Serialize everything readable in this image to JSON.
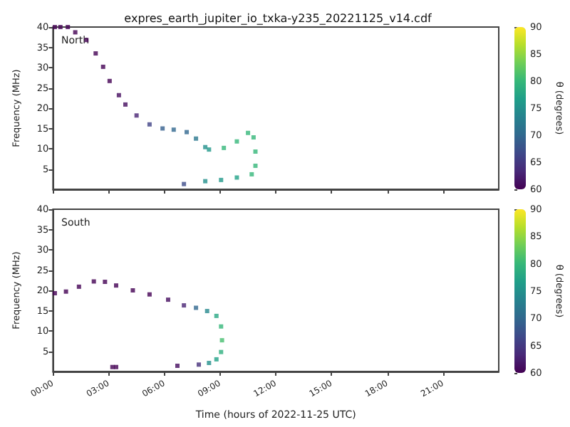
{
  "chart_data": [
    {
      "type": "scatter",
      "title": "expres_earth_jupiter_io_txka-y235_20221125_v14.cdf",
      "ylabel": "Frequency (MHz)",
      "clabel": "θ (degrees)",
      "annotations": [
        "North"
      ],
      "marker": "square",
      "tick_labels": "y",
      "x": [
        0.1,
        0.4,
        0.8,
        1.2,
        1.8,
        2.3,
        2.7,
        3.05,
        3.55,
        3.9,
        4.5,
        5.2,
        5.9,
        6.5,
        7.2,
        7.7,
        8.2,
        8.4,
        9.2,
        9.9,
        10.5,
        10.8,
        10.9,
        10.9,
        10.7,
        9.9,
        9.05,
        8.2,
        7.05
      ],
      "values": [
        40,
        40,
        40,
        38.7,
        36.8,
        33.5,
        30.2,
        26.7,
        23.2,
        20.9,
        18.2,
        16,
        15,
        14.7,
        14.1,
        12.5,
        10.4,
        9.8,
        10.2,
        11.8,
        13.9,
        12.8,
        9.3,
        5.8,
        3.7,
        2.9,
        2.3,
        2,
        1.3
      ],
      "cvalues": [
        60,
        60,
        60,
        60,
        60,
        60,
        60,
        60,
        61,
        61,
        63,
        66,
        69,
        70,
        70,
        72,
        75,
        76,
        80,
        80,
        80,
        80,
        80,
        80,
        80,
        77,
        76,
        75,
        67
      ],
      "xlim": [
        0,
        24
      ],
      "xticks": [
        {
          "value": 0,
          "label": null
        },
        {
          "value": 3,
          "label": null
        },
        {
          "value": 6,
          "label": null
        },
        {
          "value": 9,
          "label": null
        },
        {
          "value": 12,
          "label": null
        },
        {
          "value": 15,
          "label": null
        },
        {
          "value": 18,
          "label": null
        },
        {
          "value": 21,
          "label": null
        }
      ],
      "ylim": [
        0,
        40
      ],
      "yticks": [
        5,
        10,
        15,
        20,
        25,
        30,
        35,
        40
      ],
      "clim": [
        60,
        90
      ],
      "cticks": [
        60,
        65,
        70,
        75,
        80,
        85,
        90
      ]
    },
    {
      "type": "scatter",
      "xlabel": "Time (hours of 2022-11-25 UTC)",
      "ylabel": "Frequency (MHz)",
      "clabel": "θ (degrees)",
      "annotations": [
        "South"
      ],
      "marker": "square",
      "x": [
        0.1,
        0.7,
        1.4,
        2.2,
        2.8,
        3.4,
        4.3,
        5.2,
        6.2,
        7.05,
        7.7,
        8.3,
        8.8,
        9.05,
        9.1,
        9.05,
        8.8,
        8.4,
        7.85,
        6.7,
        3.2,
        3.4
      ],
      "values": [
        19.3,
        19.7,
        20.9,
        22.2,
        22.1,
        21.2,
        20,
        19,
        17.7,
        16.3,
        15.7,
        14.9,
        13.7,
        11.1,
        7.7,
        4.8,
        3,
        2.1,
        1.7,
        1.4,
        1.1,
        1.1
      ],
      "cvalues": [
        60,
        60,
        60,
        60,
        60,
        60,
        60,
        60,
        61,
        63,
        70,
        74,
        78,
        80,
        81,
        79,
        77,
        75,
        64,
        61,
        60,
        60
      ],
      "xlim": [
        0,
        24
      ],
      "xticks": [
        {
          "value": 0,
          "label": "00:00"
        },
        {
          "value": 3,
          "label": "03:00"
        },
        {
          "value": 6,
          "label": "06:00"
        },
        {
          "value": 9,
          "label": "09:00"
        },
        {
          "value": 12,
          "label": "12:00"
        },
        {
          "value": 15,
          "label": "15:00"
        },
        {
          "value": 18,
          "label": "18:00"
        },
        {
          "value": 21,
          "label": "21:00"
        }
      ],
      "ylim": [
        0,
        40
      ],
      "yticks": [
        5,
        10,
        15,
        20,
        25,
        30,
        35,
        40
      ],
      "clim": [
        60,
        90
      ],
      "cticks": [
        60,
        65,
        70,
        75,
        80,
        85,
        90
      ]
    }
  ]
}
